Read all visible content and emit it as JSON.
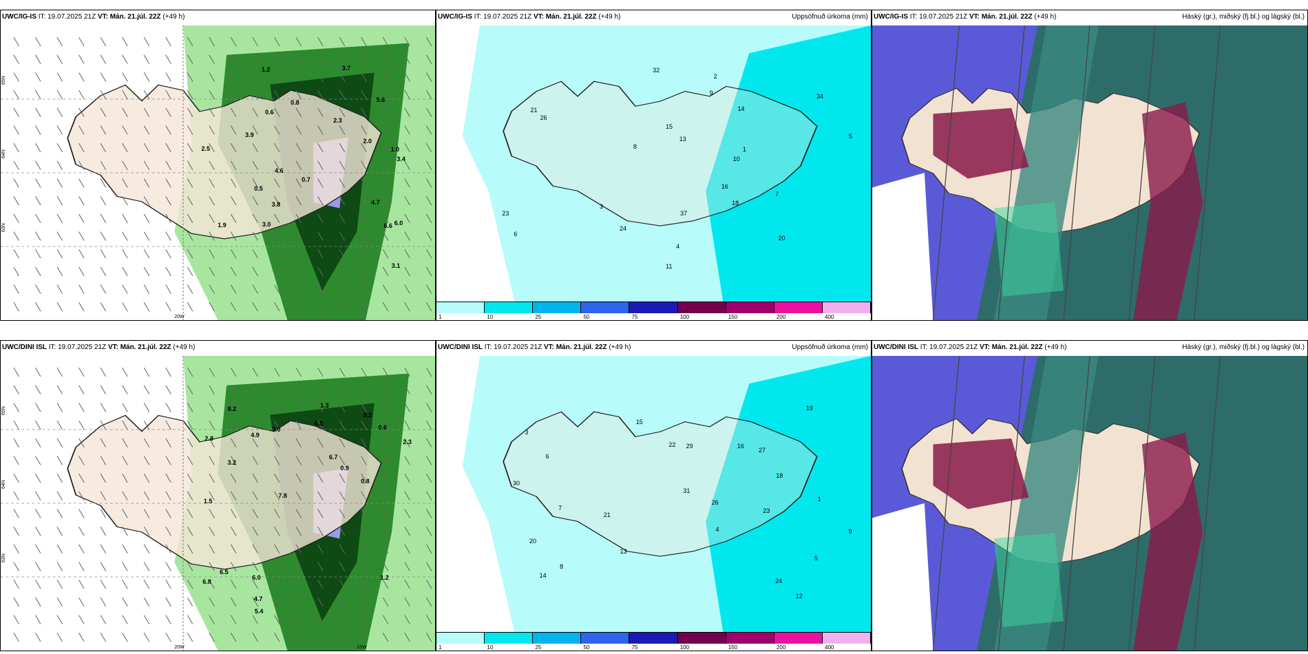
{
  "rows": [
    {
      "model": "UWC/IG-IS",
      "panels": [
        {
          "model": "UWC/IG-IS",
          "it": " IT: 19.07.2025 21Z ",
          "vt": "VT: Mán. 21.júl. 22Z",
          "lead": " (+49 h)",
          "right": "",
          "kind": "wind"
        },
        {
          "model": "UWC/IG-IS",
          "it": " IT: 19.07.2025 21Z ",
          "vt": "VT: Mán. 21.júl. 22Z",
          "lead": " (+49 h)",
          "right": "Uppsöfnuð úrkoma (mm)",
          "kind": "accum"
        },
        {
          "model": "UWC/IG-IS",
          "it": " IT: 19.07.2025 21Z ",
          "vt": "VT: Mán. 21.júl. 22Z",
          "lead": " (+49 h)",
          "right": "Háský (gr.), miðský (fj.bl.) og lágský (bl.)",
          "kind": "cloud"
        }
      ],
      "wind_labels": [
        "0.6",
        "1.0",
        "2.3",
        "3.4",
        "4.6",
        "6.0",
        "3.8",
        "3.7",
        "6.6",
        "5.6",
        "3.9",
        "4.7",
        "2.0",
        "3.0",
        "1.9",
        "0.7",
        "0.5",
        "2.5",
        "1.2",
        "0.8",
        "3.1"
      ],
      "accum_labels": [
        "2",
        "4",
        "3",
        "10",
        "5",
        "6",
        "8",
        "9",
        "23",
        "21",
        "16",
        "37",
        "26",
        "32",
        "34",
        "20",
        "24",
        "13",
        "15",
        "14",
        "18",
        "11",
        "7",
        "1"
      ],
      "lat_labels": [
        "65N",
        "64N",
        "63N"
      ],
      "lon_labels": [
        "20W"
      ]
    },
    {
      "model": "UWC/DINI ISL",
      "panels": [
        {
          "model": "UWC/DINI ISL",
          "it": " IT: 19.07.2025 21Z ",
          "vt": "VT: Mán. 21.júl. 22Z",
          "lead": " (+49 h)",
          "right": "",
          "kind": "wind"
        },
        {
          "model": "UWC/DINI ISL",
          "it": " IT: 19.07.2025 21Z ",
          "vt": "VT: Mán. 21.júl. 22Z",
          "lead": " (+49 h)",
          "right": "Uppsöfnuð úrkoma (mm)",
          "kind": "accum"
        },
        {
          "model": "UWC/DINI ISL",
          "it": " IT: 19.07.2025 21Z ",
          "vt": "VT: Mán. 21.júl. 22Z",
          "lead": " (+49 h)",
          "right": "Háský (gr.), miðský (fj.bl.) og lágský (bl.)",
          "kind": "cloud"
        }
      ],
      "wind_labels": [
        "0.5",
        "1.3",
        "2.3",
        "3.0",
        "4.7",
        "2.8",
        "8.2",
        "7.8",
        "6.7",
        "4.9",
        "5.4",
        "6.5",
        "6.8",
        "6.0",
        "9.2",
        "0.8",
        "0.9",
        "1.5",
        "0.6",
        "1.2",
        "3.2"
      ],
      "accum_labels": [
        "12",
        "7",
        "4",
        "3",
        "5",
        "6",
        "8",
        "21",
        "27",
        "22",
        "16",
        "24",
        "13",
        "15",
        "26",
        "20",
        "23",
        "31",
        "30",
        "14",
        "19",
        "29",
        "18",
        "9",
        "1"
      ],
      "lat_labels": [
        "65N",
        "64N",
        "63N"
      ],
      "lon_labels": [
        "20W",
        "15W"
      ]
    }
  ],
  "colorbar": {
    "colors": [
      "#b7fbfb",
      "#00e8ee",
      "#00b4ee",
      "#2e64ee",
      "#1a1ab4",
      "#72004e",
      "#a0006e",
      "#ee10a0",
      "#f0b0f0"
    ],
    "ticks": [
      "1",
      "10",
      "25",
      "50",
      "75",
      "100",
      "150",
      "200",
      "400"
    ]
  }
}
